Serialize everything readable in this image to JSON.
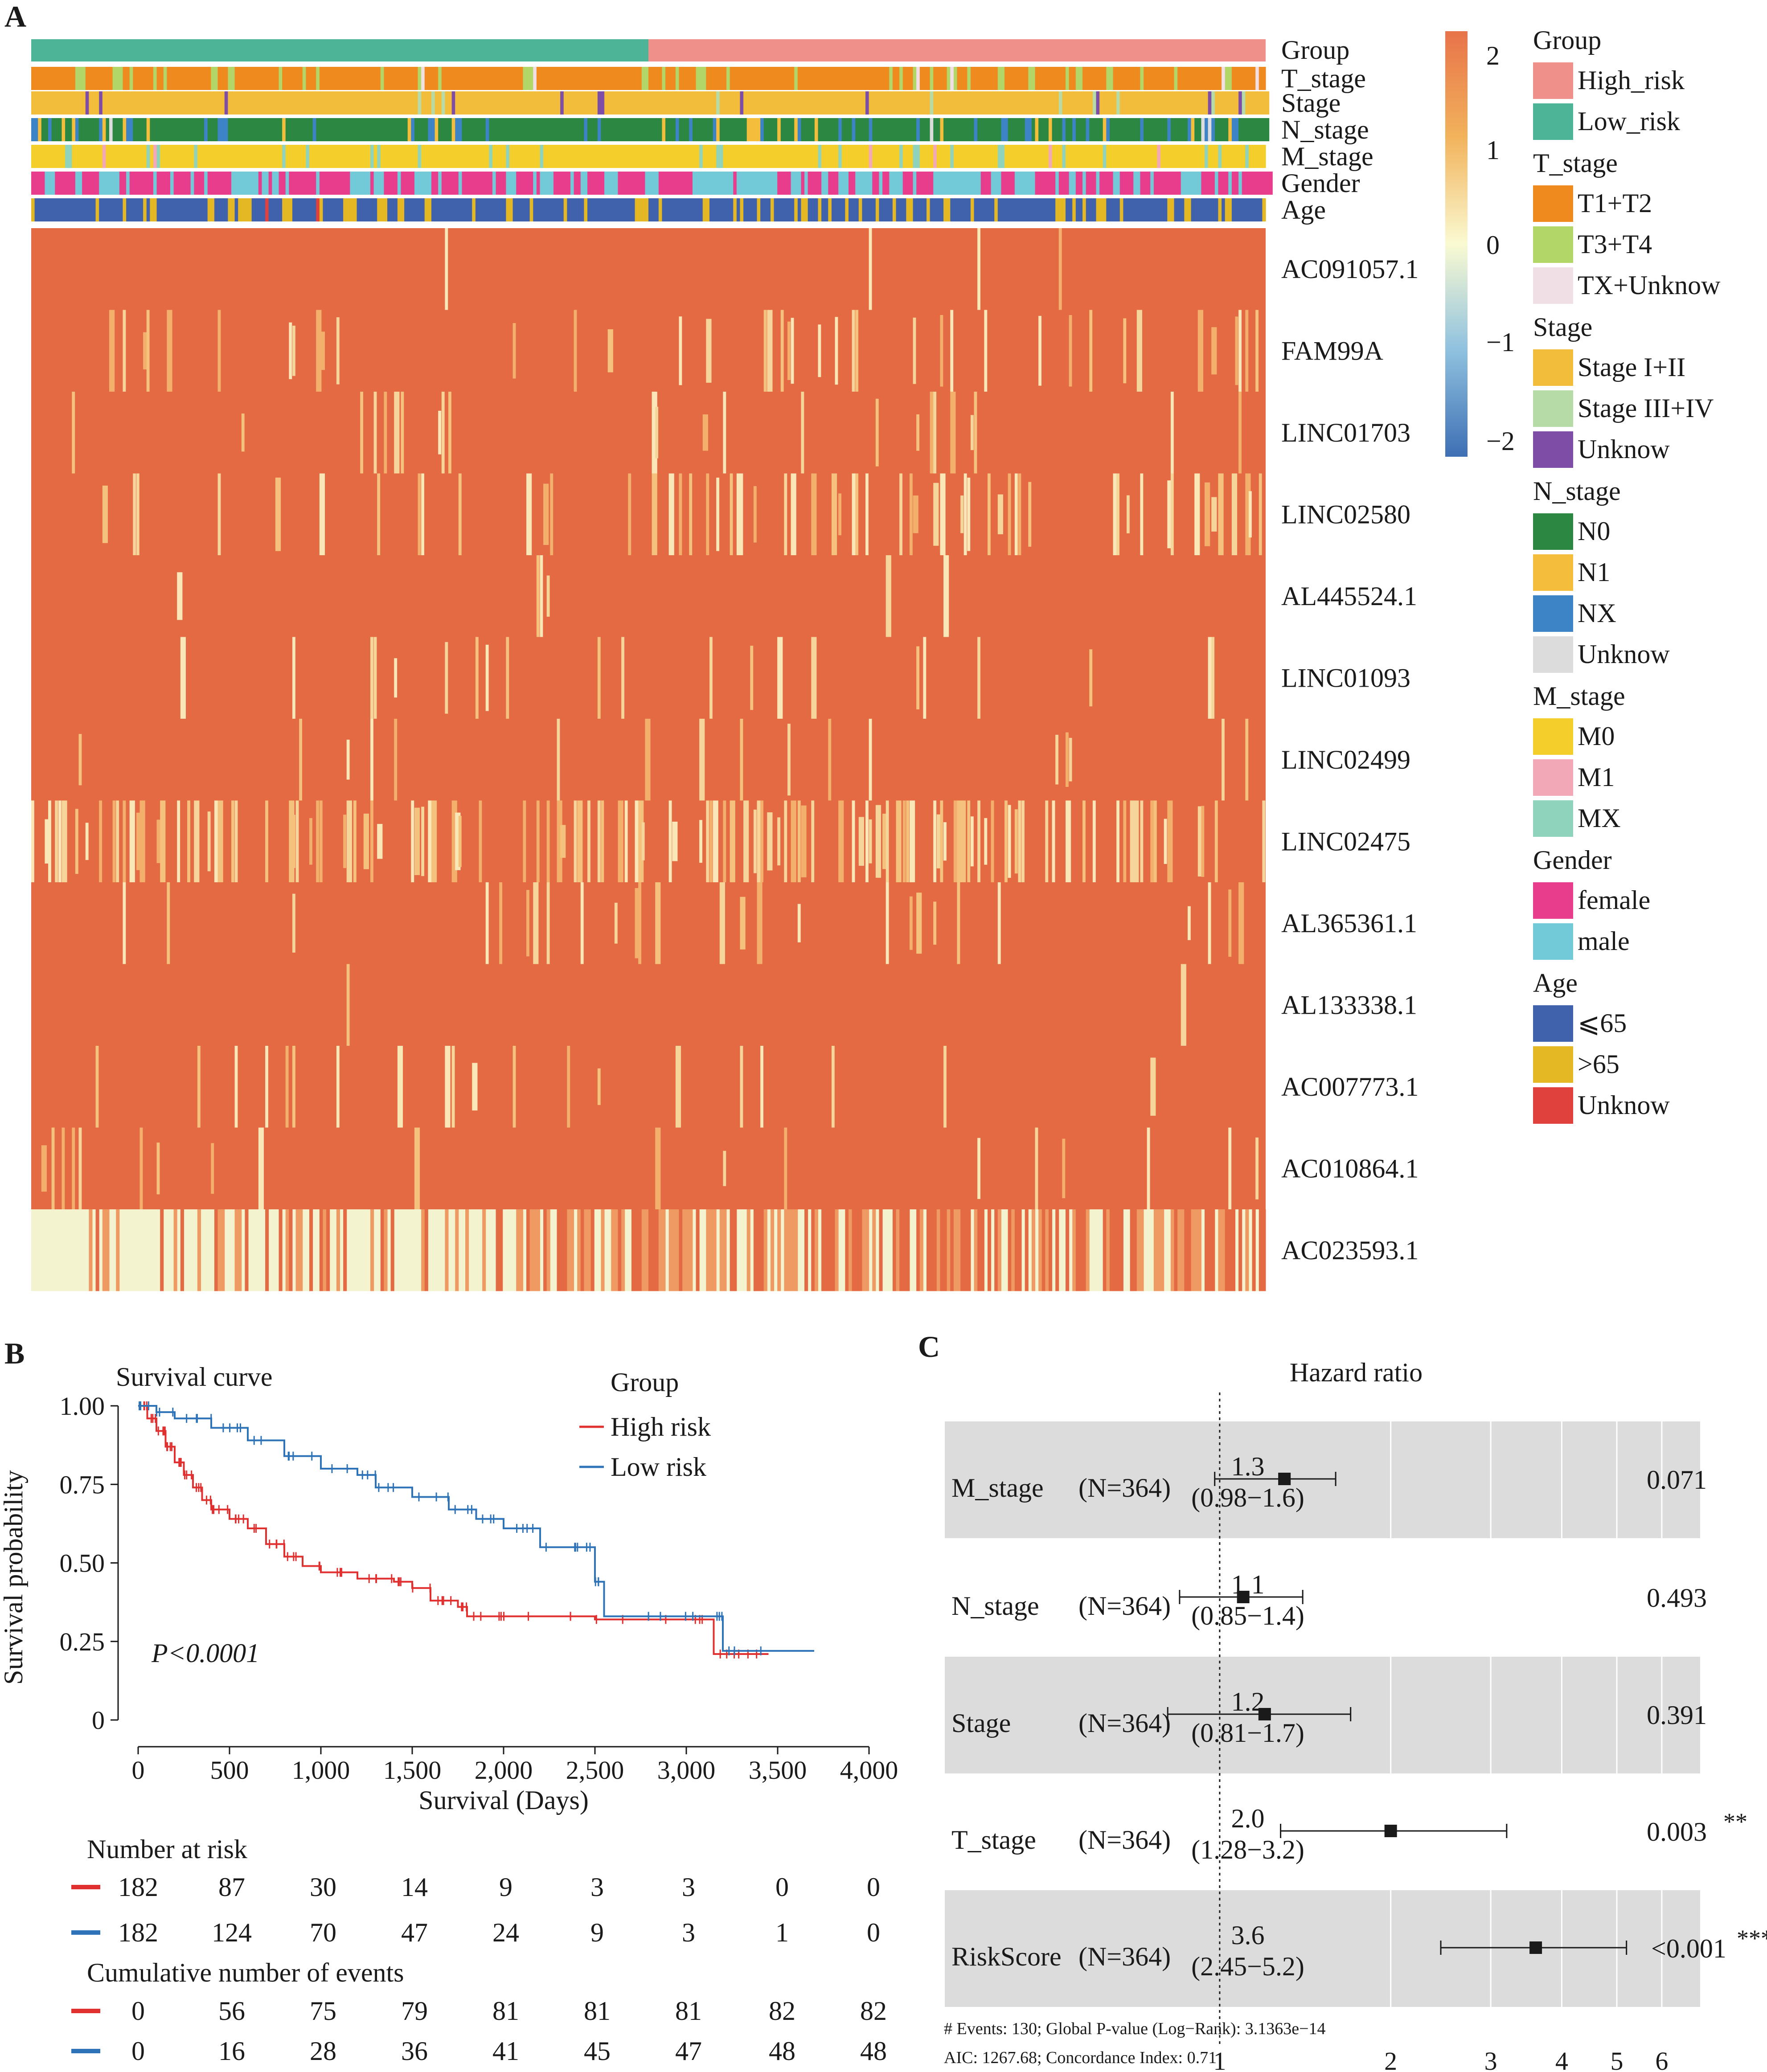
{
  "panels": {
    "a": "A",
    "b": "B",
    "c": "C"
  },
  "chart_data": [
    {
      "type": "heatmap",
      "panel": "A",
      "annotation_rows": [
        "Group",
        "T_stage",
        "Stage",
        "N_stage",
        "M_stage",
        "Gender",
        "Age"
      ],
      "genes": [
        "AC091057.1",
        "FAM99A",
        "LINC01703",
        "LINC02580",
        "AL445524.1",
        "LINC01093",
        "LINC02499",
        "LINC02475",
        "AL365361.1",
        "AL133338.1",
        "AC007773.1",
        "AC010864.1",
        "AC023593.1"
      ],
      "group_split": {
        "Low_risk": 182,
        "High_risk": 182
      },
      "colorbar": {
        "ticks": [
          "2",
          "1",
          "0",
          "−1",
          "−2"
        ],
        "colors": [
          "#e8734a",
          "#f2b35c",
          "#fafad2",
          "#8fc1df",
          "#3e6fb4"
        ]
      },
      "legend": [
        {
          "title": "Group",
          "items": [
            {
              "label": "High_risk",
              "color": "#f0908a"
            },
            {
              "label": "Low_risk",
              "color": "#4db497"
            }
          ]
        },
        {
          "title": "T_stage",
          "items": [
            {
              "label": "T1+T2",
              "color": "#ef8a1e"
            },
            {
              "label": "T3+T4",
              "color": "#b2d667"
            },
            {
              "label": "TX+Unknow",
              "color": "#f1dfe6"
            }
          ]
        },
        {
          "title": "Stage",
          "items": [
            {
              "label": "Stage I+II",
              "color": "#f3bd3c"
            },
            {
              "label": "Stage III+IV",
              "color": "#b6dba6"
            },
            {
              "label": "Unknow",
              "color": "#7e4ea6"
            }
          ]
        },
        {
          "title": "N_stage",
          "items": [
            {
              "label": "N0",
              "color": "#2b8741"
            },
            {
              "label": "N1",
              "color": "#f4bd3c"
            },
            {
              "label": "NX",
              "color": "#3d84c6"
            },
            {
              "label": "Unknow",
              "color": "#dcdcdc"
            }
          ]
        },
        {
          "title": "M_stage",
          "items": [
            {
              "label": "M0",
              "color": "#f4cf2c"
            },
            {
              "label": "M1",
              "color": "#f2a8b7"
            },
            {
              "label": "MX",
              "color": "#8fd3bc"
            }
          ]
        },
        {
          "title": "Gender",
          "items": [
            {
              "label": "female",
              "color": "#e83d8c"
            },
            {
              "label": "male",
              "color": "#72cad8"
            }
          ]
        },
        {
          "title": "Age",
          "items": [
            {
              "label": "⩽65",
              "color": "#4062ac"
            },
            {
              "label": ">65",
              "color": "#e3b824"
            },
            {
              "label": "Unknow",
              "color": "#e1413d"
            }
          ]
        }
      ]
    },
    {
      "type": "line",
      "panel": "B",
      "title": "Survival curve",
      "xlabel": "Survival (Days)",
      "ylabel": "Survival probability",
      "xlim": [
        0,
        4000
      ],
      "ylim": [
        0,
        1
      ],
      "xticks": [
        "0",
        "500",
        "1,000",
        "1,500",
        "2,000",
        "2,500",
        "3,000",
        "3,500",
        "4,000"
      ],
      "yticks": [
        "0",
        "0.25",
        "0.50",
        "0.75",
        "1.00"
      ],
      "legend_title": "Group",
      "legend_position": "top-right",
      "pvalue": "P<0.0001",
      "series": [
        {
          "name": "High risk",
          "color": "#e03030",
          "x": [
            0,
            50,
            100,
            150,
            200,
            250,
            300,
            350,
            400,
            500,
            600,
            700,
            800,
            900,
            1000,
            1200,
            1400,
            1500,
            1600,
            1750,
            1800,
            2000,
            2500,
            3000,
            3150,
            3300,
            3450
          ],
          "y": [
            1.0,
            0.96,
            0.92,
            0.87,
            0.82,
            0.78,
            0.74,
            0.7,
            0.67,
            0.64,
            0.61,
            0.56,
            0.52,
            0.49,
            0.47,
            0.45,
            0.44,
            0.42,
            0.38,
            0.36,
            0.33,
            0.33,
            0.32,
            0.32,
            0.21,
            0.21,
            0.21
          ]
        },
        {
          "name": "Low risk",
          "color": "#2e73b8",
          "x": [
            0,
            100,
            200,
            400,
            600,
            800,
            1000,
            1200,
            1300,
            1500,
            1700,
            1850,
            2000,
            2200,
            2450,
            2500,
            2550,
            3000,
            3200,
            3700
          ],
          "y": [
            1.0,
            0.98,
            0.96,
            0.93,
            0.89,
            0.84,
            0.8,
            0.78,
            0.74,
            0.71,
            0.67,
            0.64,
            0.61,
            0.55,
            0.55,
            0.44,
            0.33,
            0.33,
            0.22,
            0.22
          ]
        }
      ],
      "risk_table": {
        "title": "Number at risk",
        "high": [
          "182",
          "87",
          "30",
          "14",
          "9",
          "3",
          "3",
          "0",
          "0"
        ],
        "low": [
          "182",
          "124",
          "70",
          "47",
          "24",
          "9",
          "3",
          "1",
          "0"
        ]
      },
      "events_table": {
        "title": "Cumulative number of events",
        "high": [
          "0",
          "56",
          "75",
          "79",
          "81",
          "81",
          "81",
          "82",
          "82"
        ],
        "low": [
          "0",
          "16",
          "28",
          "36",
          "41",
          "45",
          "47",
          "48",
          "48"
        ]
      }
    },
    {
      "type": "forest",
      "panel": "C",
      "title": "Hazard ratio",
      "xticks": [
        "1",
        "2",
        "3",
        "4",
        "5",
        "6"
      ],
      "rows": [
        {
          "name": "M_stage",
          "n": "(N=364)",
          "hr": 1.3,
          "ci_low": 0.98,
          "ci_high": 1.6,
          "hr_text": "1.3",
          "ci_text": "(0.98−1.6)",
          "p": "0.071",
          "stars": ""
        },
        {
          "name": "N_stage",
          "n": "(N=364)",
          "hr": 1.1,
          "ci_low": 0.85,
          "ci_high": 1.4,
          "hr_text": "1.1",
          "ci_text": "(0.85−1.4)",
          "p": "0.493",
          "stars": ""
        },
        {
          "name": "Stage",
          "n": "(N=364)",
          "hr": 1.2,
          "ci_low": 0.81,
          "ci_high": 1.7,
          "hr_text": "1.2",
          "ci_text": "(0.81−1.7)",
          "p": "0.391",
          "stars": ""
        },
        {
          "name": "T_stage",
          "n": "(N=364)",
          "hr": 2.0,
          "ci_low": 1.28,
          "ci_high": 3.2,
          "hr_text": "2.0",
          "ci_text": "(1.28−3.2)",
          "p": "0.003",
          "stars": "**"
        },
        {
          "name": "RiskScore",
          "n": "(N=364)",
          "hr": 3.6,
          "ci_low": 2.45,
          "ci_high": 5.2,
          "hr_text": "3.6",
          "ci_text": "(2.45−5.2)",
          "p": "<0.001",
          "stars": "***"
        }
      ],
      "footnote1": "# Events: 130; Global P-value (Log−Rank): 3.1363e−14",
      "footnote2": "AIC: 1267.68; Concordance Index: 0.71"
    }
  ]
}
